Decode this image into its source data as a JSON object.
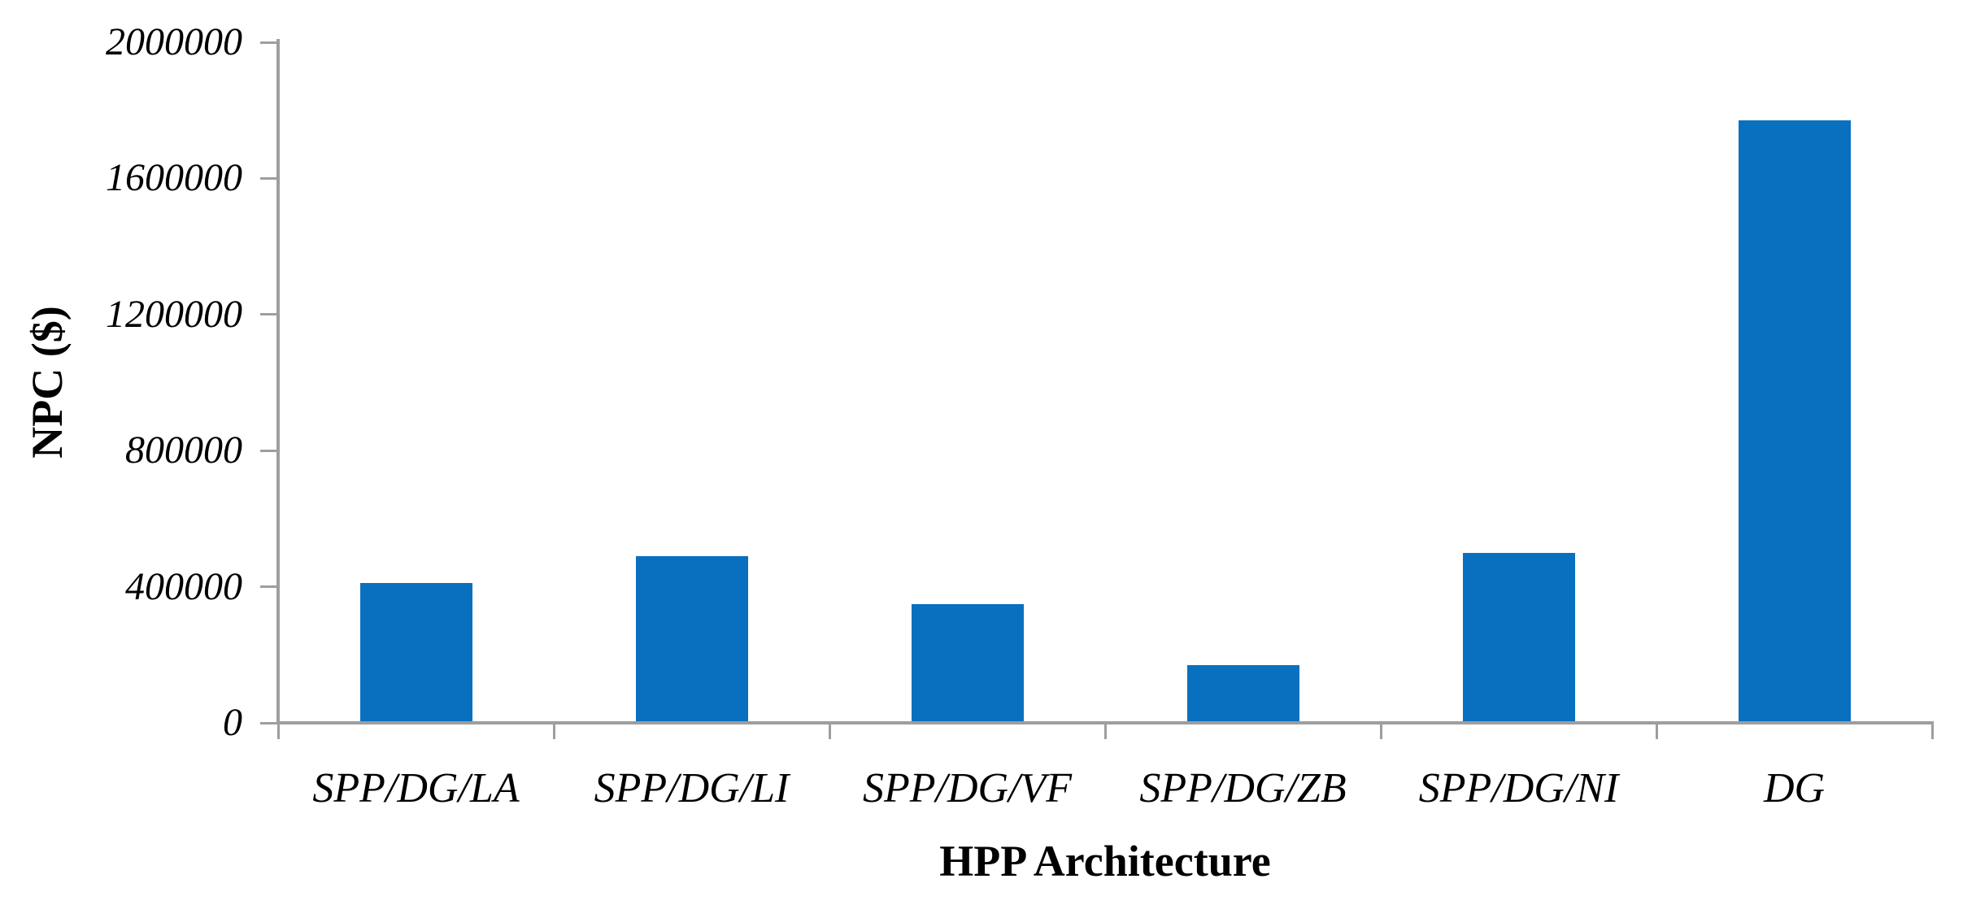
{
  "chart_data": {
    "type": "bar",
    "title": "",
    "categories": [
      "SPP/DG/LA",
      "SPP/DG/LI",
      "SPP/DG/VF",
      "SPP/DG/ZB",
      "SPP/DG/NI",
      "DG"
    ],
    "values": [
      410000,
      490000,
      350000,
      170000,
      500000,
      1770000
    ],
    "series_name": "NPC",
    "xlabel": "HPP Architecture",
    "ylabel": "NPC ($)",
    "ylim": [
      0,
      2000000
    ],
    "ytick_interval": 400000,
    "ytick_values": [
      0,
      400000,
      800000,
      1200000,
      1600000,
      2000000
    ],
    "ytick_labels": [
      "0",
      "400000",
      "800000",
      "1200000",
      "1600000",
      "2000000"
    ],
    "grid": false,
    "legend_position": "none",
    "bar_color": "#0970BF",
    "axis_color": "#9E9E9E",
    "text_color": "#000000"
  }
}
